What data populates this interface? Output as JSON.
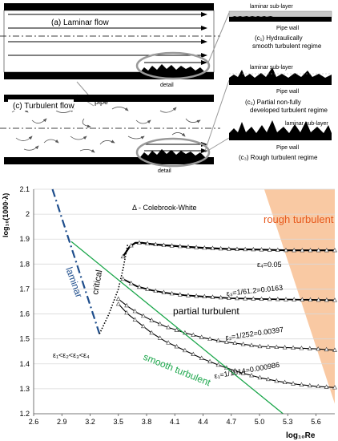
{
  "pipe_diagram": {
    "laminar_title": "(a) Laminar flow",
    "turbulent_title": "(c) Turbulent flow",
    "pipe_label": "pipe",
    "detail_label_top": "detail",
    "detail_label_bottom": "detail",
    "insets": [
      {
        "sublayer": "laminar sub-layer",
        "wall": "Pipe wall",
        "caption_line1": "(c₁) Hydraulically",
        "caption_line2": "smooth turbulent regime"
      },
      {
        "sublayer": "laminar sub-layer",
        "wall": "Pipe wall",
        "caption_line1": "(c₂) Partial non-fully",
        "caption_line2": "developed turbulent regime"
      },
      {
        "sublayer": "laminar sub-layer",
        "wall": "Pipe wall",
        "caption_line1": "(c₃) Rough turbulent regime",
        "caption_line2": ""
      }
    ]
  },
  "chart_data": {
    "type": "line",
    "xlabel": "log₁₀Re",
    "ylabel": "log₁₀(1000·λ)",
    "xlim": [
      2.6,
      5.8
    ],
    "ylim": [
      1.2,
      2.1
    ],
    "xticks": [
      "2.6",
      "2.9",
      "3.2",
      "3.5",
      "3.8",
      "4.1",
      "4.4",
      "4.7",
      "5.0",
      "5.3",
      "5.6"
    ],
    "yticks": [
      "1.2",
      "1.3",
      "1.4",
      "1.5",
      "1.6",
      "1.7",
      "1.8",
      "1.9",
      "2",
      "2.1"
    ],
    "marker_note": "Δ - Colebrook-White",
    "region_labels": {
      "rough": "rough turbulent",
      "laminar": "laminar",
      "critical": "critical",
      "partial": "partial turbulent",
      "smooth": "smooth turbulent",
      "order": "ε₁<ε₂<ε₃<ε₄"
    },
    "series": [
      {
        "name": "ε₄=0.05",
        "x": [
          3.55,
          3.62,
          3.68,
          3.75,
          3.85,
          4.0,
          4.2,
          4.4,
          4.7,
          5.0,
          5.3,
          5.8
        ],
        "y": [
          1.83,
          1.87,
          1.885,
          1.885,
          1.88,
          1.875,
          1.87,
          1.865,
          1.86,
          1.858,
          1.855,
          1.855
        ]
      },
      {
        "name": "ε₃=1/61.2=0.0163",
        "x": [
          3.55,
          3.6,
          3.7,
          3.85,
          4.0,
          4.2,
          4.4,
          4.7,
          5.0,
          5.3,
          5.8
        ],
        "y": [
          1.74,
          1.73,
          1.71,
          1.695,
          1.685,
          1.675,
          1.67,
          1.663,
          1.66,
          1.658,
          1.655
        ]
      },
      {
        "name": "ε₂=1/252=0.00397",
        "x": [
          3.5,
          3.6,
          3.7,
          3.85,
          4.0,
          4.2,
          4.4,
          4.6,
          4.8,
          5.0,
          5.3,
          5.6,
          5.8
        ],
        "y": [
          1.66,
          1.63,
          1.605,
          1.575,
          1.55,
          1.525,
          1.505,
          1.49,
          1.48,
          1.47,
          1.465,
          1.46,
          1.455
        ]
      },
      {
        "name": "ε₁=1/1014=0.000986",
        "x": [
          3.5,
          3.6,
          3.7,
          3.85,
          4.0,
          4.2,
          4.4,
          4.6,
          4.8,
          5.0,
          5.2,
          5.4,
          5.6,
          5.8
        ],
        "y": [
          1.64,
          1.6,
          1.57,
          1.525,
          1.49,
          1.455,
          1.42,
          1.39,
          1.365,
          1.345,
          1.33,
          1.318,
          1.31,
          1.305
        ]
      },
      {
        "name": "laminar",
        "x": [
          2.8,
          3.3
        ],
        "y": [
          2.1,
          1.52
        ]
      },
      {
        "name": "critical",
        "x": [
          3.3,
          3.35,
          3.4,
          3.45,
          3.5,
          3.55,
          3.6
        ],
        "y": [
          1.52,
          1.56,
          1.6,
          1.65,
          1.7,
          1.78,
          1.88
        ]
      },
      {
        "name": "smooth turbulent",
        "x": [
          3.0,
          5.25
        ],
        "y": [
          1.89,
          1.2
        ]
      }
    ],
    "colors": {
      "laminar": "#1f4e8c",
      "smooth": "#1aa64a",
      "rough_fill": "#f9c9a3",
      "rough_text": "#e65a1e"
    }
  }
}
